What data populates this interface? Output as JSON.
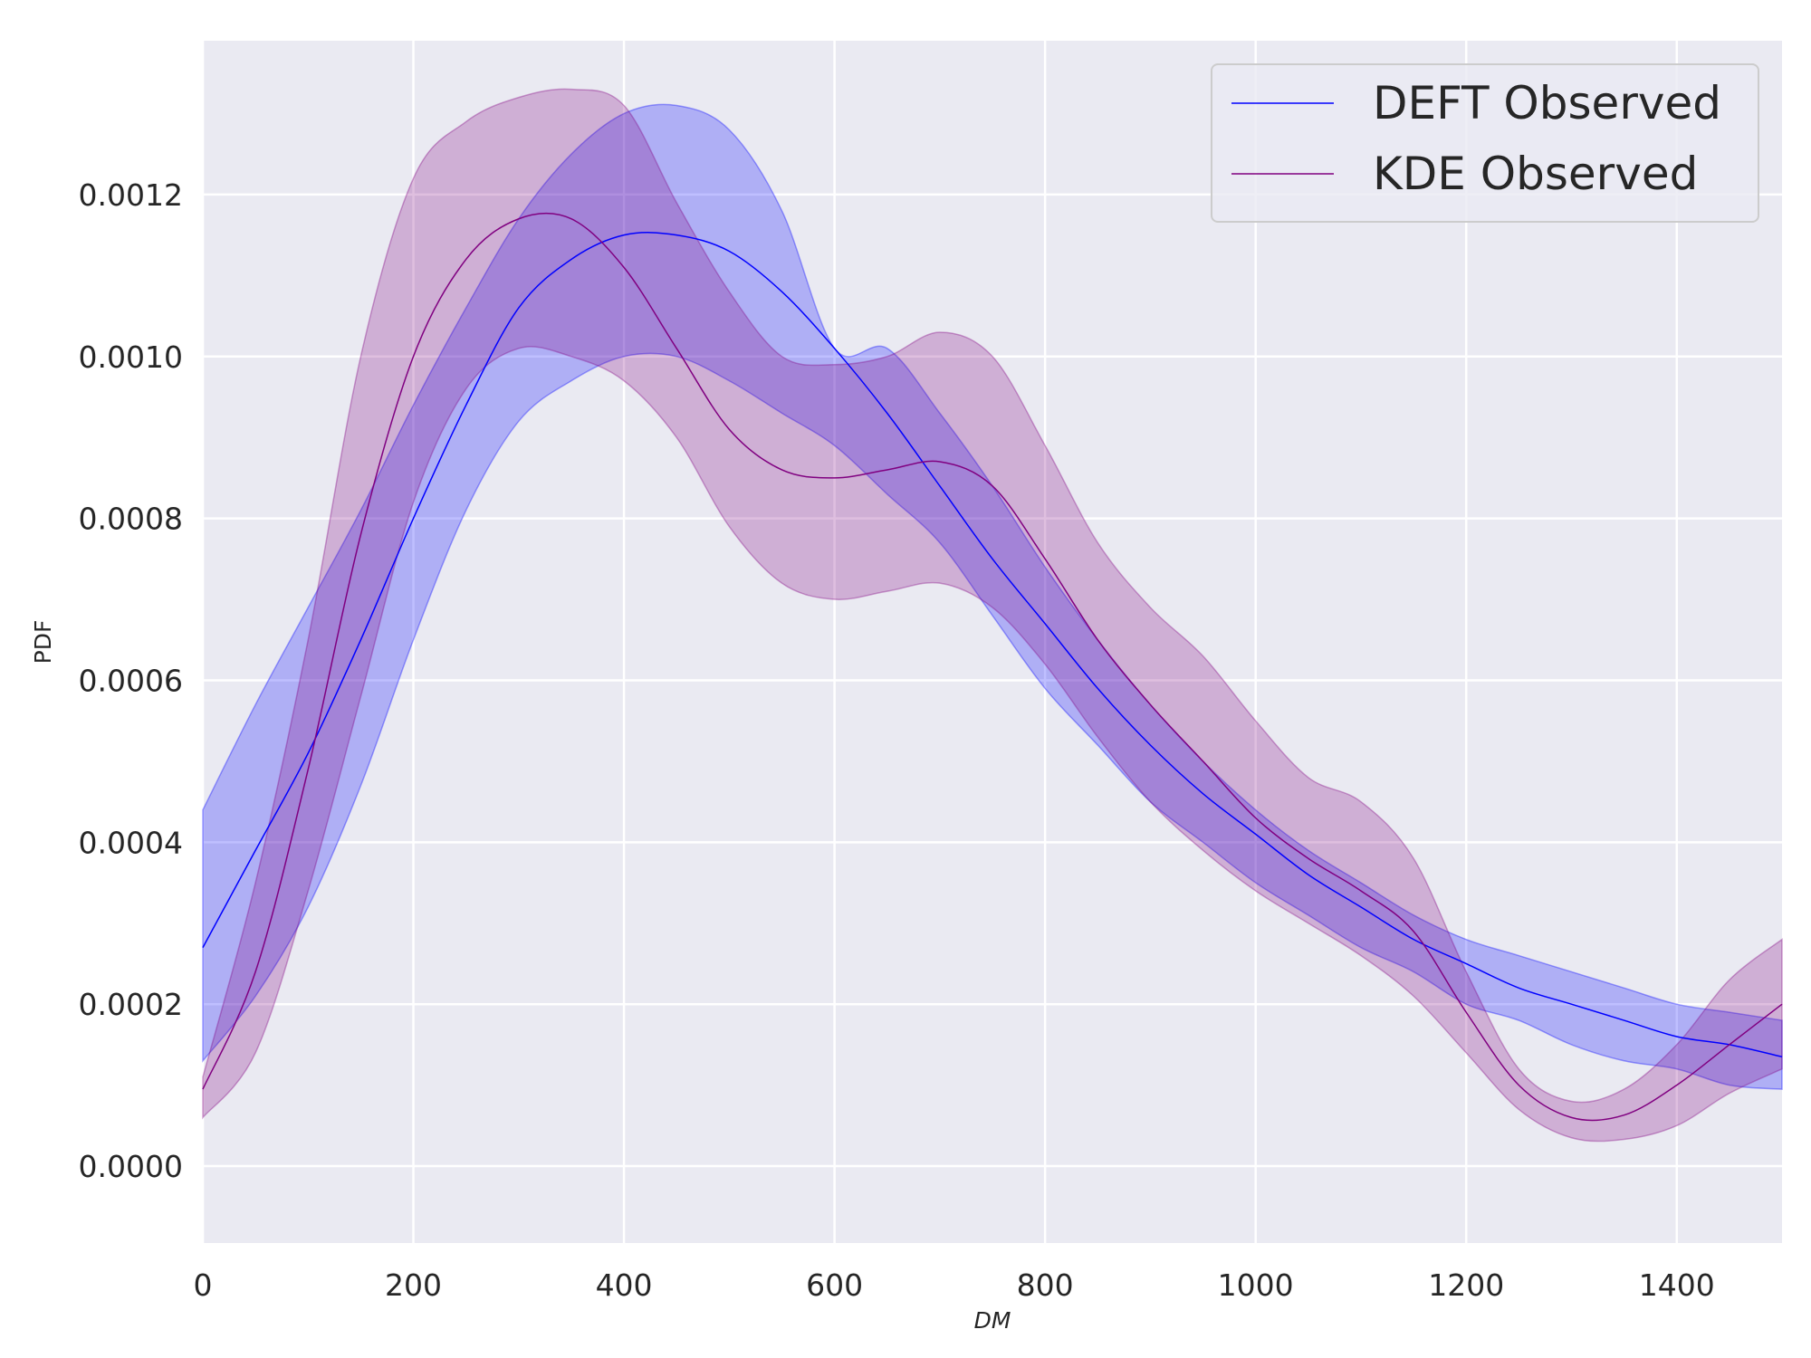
{
  "chart_data": {
    "type": "line",
    "xlabel": "DM",
    "ylabel": "PDF",
    "xlim": [
      0,
      1500
    ],
    "ylim": [
      -9.5e-05,
      0.00139
    ],
    "x_ticks": [
      0,
      200,
      400,
      600,
      800,
      1000,
      1200,
      1400
    ],
    "x_tick_labels": [
      "0",
      "200",
      "400",
      "600",
      "800",
      "1000",
      "1200",
      "1400"
    ],
    "y_ticks": [
      0,
      0.0002,
      0.0004,
      0.0006,
      0.0008,
      0.001,
      0.0012
    ],
    "y_tick_labels": [
      "0.0000",
      "0.0002",
      "0.0004",
      "0.0006",
      "0.0008",
      "0.0010",
      "0.0012"
    ],
    "grid": true,
    "legend_position": "upper right",
    "colors": {
      "plot_bg": "#eaeaf2",
      "grid": "#ffffff",
      "deft": "#0000ff",
      "kde": "#800080"
    },
    "series": [
      {
        "name": "DEFT Observed",
        "color": "#0000ff",
        "band_opacity": 0.25,
        "x": [
          0,
          50,
          100,
          150,
          200,
          250,
          300,
          350,
          400,
          450,
          500,
          550,
          600,
          650,
          700,
          750,
          800,
          850,
          900,
          950,
          1000,
          1050,
          1100,
          1150,
          1200,
          1250,
          1300,
          1350,
          1400,
          1450,
          1500
        ],
        "y": [
          0.00027,
          0.00039,
          0.00051,
          0.00065,
          0.0008,
          0.00094,
          0.00106,
          0.00112,
          0.00115,
          0.00115,
          0.00113,
          0.00108,
          0.00101,
          0.00093,
          0.00084,
          0.00075,
          0.00067,
          0.00059,
          0.00052,
          0.00046,
          0.00041,
          0.00036,
          0.00032,
          0.00028,
          0.00025,
          0.00022,
          0.0002,
          0.00018,
          0.00016,
          0.00015,
          0.000135
        ],
        "upper": [
          0.00044,
          0.00057,
          0.00069,
          0.00081,
          0.00094,
          0.00106,
          0.00117,
          0.00125,
          0.0013,
          0.00131,
          0.00128,
          0.00118,
          0.00101,
          0.00101,
          0.00093,
          0.00084,
          0.00074,
          0.00065,
          0.00057,
          0.0005,
          0.00044,
          0.00039,
          0.00035,
          0.00031,
          0.00028,
          0.00026,
          0.00024,
          0.00022,
          0.0002,
          0.00019,
          0.00018
        ],
        "lower": [
          0.00013,
          0.00021,
          0.00032,
          0.00047,
          0.00065,
          0.00081,
          0.00092,
          0.00097,
          0.001,
          0.001,
          0.00097,
          0.00093,
          0.00089,
          0.00083,
          0.00077,
          0.00068,
          0.00059,
          0.00052,
          0.00045,
          0.0004,
          0.00035,
          0.00031,
          0.00027,
          0.00024,
          0.0002,
          0.00018,
          0.00015,
          0.00013,
          0.00012,
          0.0001,
          9.5e-05
        ]
      },
      {
        "name": "KDE Observed",
        "color": "#800080",
        "band_opacity": 0.25,
        "x": [
          0,
          50,
          100,
          150,
          200,
          250,
          300,
          350,
          400,
          450,
          500,
          550,
          600,
          650,
          700,
          750,
          800,
          850,
          900,
          950,
          1000,
          1050,
          1100,
          1150,
          1200,
          1250,
          1300,
          1350,
          1400,
          1450,
          1500
        ],
        "y": [
          9.5e-05,
          0.00024,
          0.00049,
          0.00078,
          0.001,
          0.00112,
          0.00117,
          0.00117,
          0.00111,
          0.00101,
          0.00091,
          0.00086,
          0.00085,
          0.00086,
          0.00087,
          0.00084,
          0.00075,
          0.00065,
          0.00057,
          0.0005,
          0.00043,
          0.00038,
          0.00034,
          0.00029,
          0.00019,
          0.0001,
          6e-05,
          6.3e-05,
          0.0001,
          0.00015,
          0.0002
        ],
        "upper": [
          0.00011,
          0.00035,
          0.00065,
          0.001,
          0.00122,
          0.00129,
          0.00132,
          0.00133,
          0.00131,
          0.00119,
          0.00108,
          0.001,
          0.00099,
          0.001,
          0.00103,
          0.001,
          0.00089,
          0.00077,
          0.00069,
          0.00063,
          0.00055,
          0.00048,
          0.00045,
          0.00038,
          0.00024,
          0.00012,
          8e-05,
          9.5e-05,
          0.00015,
          0.00023,
          0.00028
        ],
        "lower": [
          6e-05,
          0.00014,
          0.00034,
          0.00058,
          0.00082,
          0.00096,
          0.00101,
          0.001,
          0.00097,
          0.0009,
          0.00079,
          0.00072,
          0.0007,
          0.00071,
          0.00072,
          0.00069,
          0.00062,
          0.00053,
          0.00045,
          0.00039,
          0.00034,
          0.0003,
          0.00026,
          0.00021,
          0.00014,
          7e-05,
          3.5e-05,
          3.3e-05,
          5e-05,
          9e-05,
          0.00012
        ]
      }
    ]
  }
}
